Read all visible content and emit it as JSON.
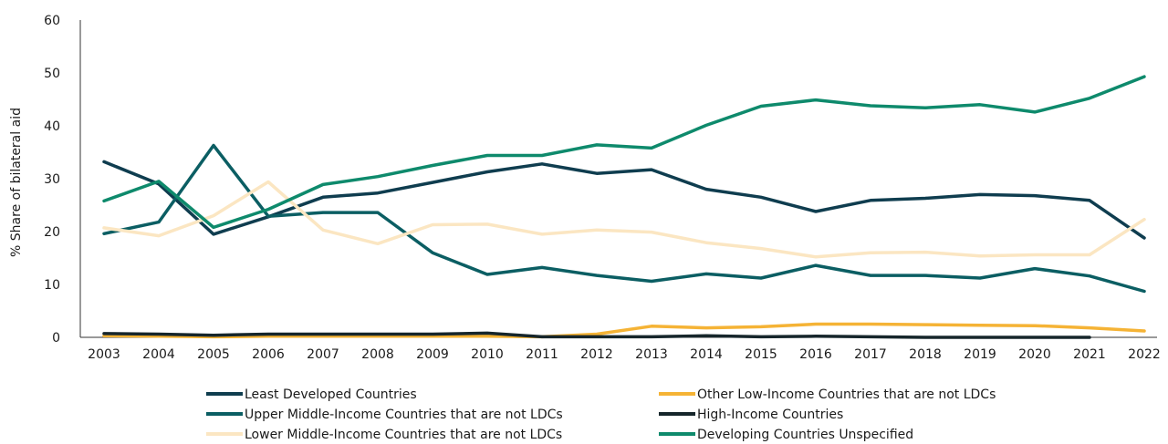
{
  "chart_data": {
    "type": "line",
    "title": "",
    "xlabel": "",
    "ylabel": "% Share of bilateral aid",
    "ylim": [
      0,
      60
    ],
    "yticks": [
      0,
      10,
      20,
      30,
      40,
      50,
      60
    ],
    "grid": false,
    "legend_position": "bottom",
    "x": [
      "2003",
      "2004",
      "2005",
      "2006",
      "2007",
      "2008",
      "2009",
      "2010",
      "2011",
      "2012",
      "2013",
      "2014",
      "2015",
      "2016",
      "2017",
      "2018",
      "2019",
      "2020",
      "2021",
      "2022"
    ],
    "series": [
      {
        "name": "Least Developed Countries",
        "color": "#0f3d4f",
        "values": [
          33.2,
          29.0,
          19.5,
          22.8,
          26.5,
          27.3,
          29.3,
          31.3,
          32.8,
          31.0,
          31.7,
          28.0,
          26.5,
          23.8,
          25.9,
          26.3,
          27.0,
          26.8,
          25.9,
          18.8
        ]
      },
      {
        "name": "Other Low-Income Countries that are not LDCs",
        "color": "#f5b335",
        "values": [
          0.3,
          0.2,
          0.1,
          0.2,
          0.2,
          0.2,
          0.2,
          0.2,
          0.1,
          0.6,
          2.1,
          1.8,
          2.0,
          2.5,
          2.5,
          2.4,
          2.3,
          2.2,
          1.8,
          1.2
        ]
      },
      {
        "name": "Upper Middle-Income Countries that are not LDCs",
        "color": "#0b5e63",
        "values": [
          19.6,
          21.8,
          36.3,
          22.9,
          23.6,
          23.6,
          16.0,
          11.9,
          13.2,
          11.7,
          10.6,
          12.0,
          11.2,
          13.6,
          11.7,
          11.7,
          11.2,
          13.0,
          11.6,
          8.7
        ]
      },
      {
        "name": "High-Income Countries",
        "color": "#16262b",
        "values": [
          0.7,
          0.6,
          0.4,
          0.6,
          0.6,
          0.6,
          0.6,
          0.8,
          0.1,
          0.1,
          0.1,
          0.3,
          0.1,
          0.2,
          0.1,
          0.0,
          0.0,
          0.0,
          0.0,
          null
        ]
      },
      {
        "name": "Lower Middle-Income Countries that are not LDCs",
        "color": "#fbe6c2",
        "values": [
          20.7,
          19.2,
          23.0,
          29.4,
          20.3,
          17.7,
          21.3,
          21.4,
          19.5,
          20.3,
          19.9,
          17.9,
          16.8,
          15.2,
          16.0,
          16.1,
          15.4,
          15.6,
          15.6,
          22.3
        ]
      },
      {
        "name": "Developing Countries Unspecified",
        "color": "#0e8a6c",
        "values": [
          25.8,
          29.5,
          20.8,
          24.2,
          28.9,
          30.4,
          32.5,
          34.4,
          34.4,
          36.4,
          35.8,
          40.1,
          43.7,
          44.9,
          43.8,
          43.4,
          44.0,
          42.6,
          45.2,
          49.3
        ]
      }
    ]
  }
}
